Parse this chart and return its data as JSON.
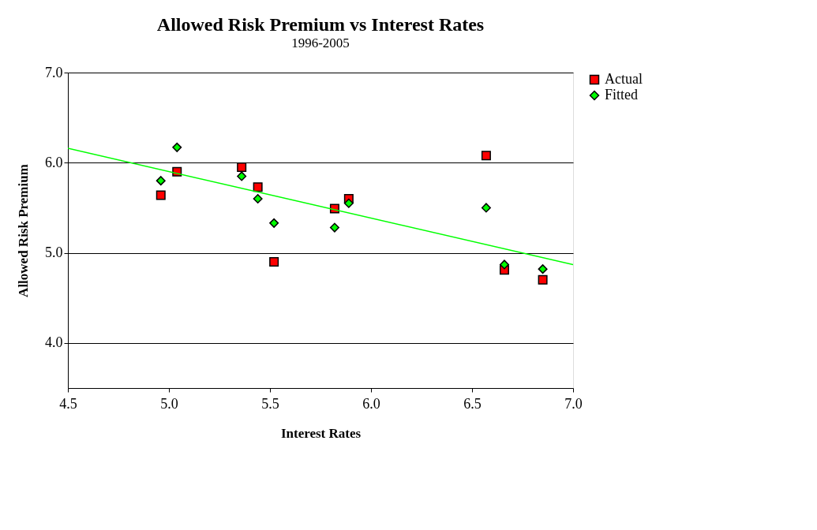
{
  "chart_data": {
    "type": "scatter",
    "title": "Allowed Risk Premium vs Interest Rates",
    "subtitle": "1996-2005",
    "xlabel": "Interest Rates",
    "ylabel": "Allowed Risk Premium",
    "xlim": [
      4.5,
      7.0
    ],
    "xticks": [
      4.5,
      {
        "value": 5,
        "label": "5.0"
      },
      5.5,
      {
        "value": 6,
        "label": "6.0"
      },
      6.5,
      {
        "value": 7,
        "label": "7.0"
      }
    ],
    "ylim": [
      3.5,
      7.0
    ],
    "yticks": [
      {
        "value": 4,
        "label": "4.0"
      },
      {
        "value": 5,
        "label": "5.0"
      },
      {
        "value": 6,
        "label": "6.0"
      },
      {
        "value": 7,
        "label": "7.0"
      }
    ],
    "grid": "y",
    "legend": "right",
    "series": [
      {
        "name": "Actual",
        "marker": "square",
        "color": "#ff0000",
        "x": [
          4.96,
          5.04,
          5.36,
          5.44,
          5.52,
          5.82,
          5.89,
          6.57,
          6.66,
          6.85
        ],
        "values": [
          5.64,
          5.9,
          5.95,
          5.73,
          4.9,
          5.49,
          5.6,
          6.08,
          4.81,
          4.7
        ]
      },
      {
        "name": "Fitted",
        "marker": "diamond",
        "color": "#00ff00",
        "x": [
          4.96,
          5.04,
          5.36,
          5.44,
          5.52,
          5.82,
          5.89,
          6.57,
          6.66,
          6.85
        ],
        "values": [
          5.8,
          6.17,
          5.85,
          5.6,
          5.33,
          5.28,
          5.55,
          5.5,
          4.87,
          4.82
        ]
      },
      {
        "type": "line",
        "color": "#00ff00",
        "x": [
          4.5,
          7.0
        ],
        "values": [
          6.16,
          4.87
        ]
      }
    ]
  }
}
